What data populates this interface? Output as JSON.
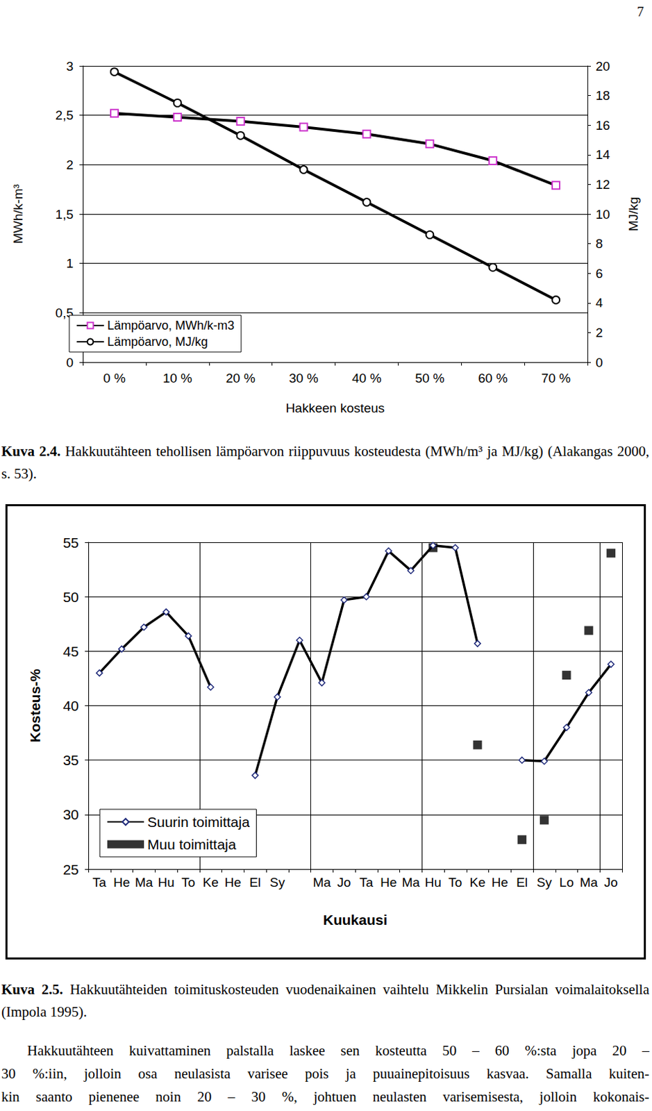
{
  "page_number": "7",
  "chart_data": [
    {
      "type": "line",
      "x_label": "Hakkeen kosteus",
      "y_label": "MWh/k-m³",
      "y2_label": "MJ/kg",
      "categories": [
        "0 %",
        "10 %",
        "20 %",
        "30 %",
        "40 %",
        "50 %",
        "60 %",
        "70 %"
      ],
      "series": [
        {
          "name": "Lämpöarvo, MWh/k-m3",
          "color": "#cc33cc",
          "marker": "square",
          "line_style": "solid",
          "values": [
            2.52,
            2.48,
            2.44,
            2.38,
            2.31,
            2.21,
            2.04,
            1.79
          ]
        },
        {
          "name": "Lämpöarvo, MJ/kg",
          "color": "#000000",
          "marker": "circle",
          "line_style": "solid",
          "axis": "y2",
          "values": [
            19.6,
            17.5,
            15.3,
            13.0,
            10.8,
            8.6,
            6.4,
            4.2
          ]
        }
      ],
      "ylim": [
        0,
        3
      ],
      "yticks": [
        0,
        {
          "value": 0.5,
          "label": "0,5"
        },
        1,
        {
          "value": 1.5,
          "label": "1,5"
        },
        2,
        {
          "value": 2.5,
          "label": "2,5"
        },
        3
      ],
      "y2lim": [
        0,
        20
      ],
      "y2ticks": [
        0,
        2,
        4,
        6,
        8,
        10,
        12,
        14,
        16,
        18,
        20
      ],
      "grid": true,
      "legend": "lower left"
    },
    {
      "type": "line",
      "x_label": "Kuukausi",
      "y_label": "Kosteus-%",
      "categories": [
        "Ta",
        "He",
        "Ma",
        "Hu",
        "To",
        "Ke",
        "He",
        "El",
        "Sy",
        null,
        "Ma",
        "Jo",
        "Ta",
        "He",
        "Ma",
        "Hu",
        "To",
        "Ke",
        "He",
        "El",
        "Sy",
        "Lo",
        "Ma",
        "Jo"
      ],
      "series": [
        {
          "name": "Suurin toimittaja",
          "type": "line",
          "color": "#1f2a7a",
          "marker": "diamond",
          "line_style": "solid",
          "values": [
            43,
            45.2,
            47.2,
            48.6,
            46.4,
            41.7,
            null,
            33.6,
            40.8,
            46,
            42.1,
            49.7,
            50,
            54.2,
            52.4,
            54.7,
            54.5,
            45.7,
            null,
            35,
            34.9,
            38,
            41.2,
            43.8
          ]
        },
        {
          "name": "Muu toimittaja",
          "type": "scatter",
          "color": "#000000",
          "marker": "square",
          "values": [
            null,
            null,
            null,
            null,
            null,
            null,
            null,
            null,
            null,
            null,
            null,
            null,
            null,
            null,
            null,
            54.5,
            null,
            36.4,
            null,
            27.7,
            29.5,
            42.8,
            46.9,
            54.0
          ]
        }
      ],
      "ylim": [
        25,
        55
      ],
      "yticks": [
        25,
        30,
        35,
        40,
        45,
        50,
        55
      ],
      "grid": true,
      "legend": "lower left"
    }
  ],
  "captions": [
    {
      "label": "Kuva 2.4.",
      "text": "Hakkuutähteen tehollisen lämpöarvon riippuvuus kosteudesta (MWh/m³ ja MJ/kg) (Alakangas 2000, s. 53)."
    },
    {
      "label": "Kuva 2.5.",
      "text": "Hakkuutähteiden toimituskosteuden vuodenaikainen vaihtelu Mikkelin Pursialan voimalaitoksella (Impola 1995)."
    }
  ],
  "body": {
    "lines": [
      "Hakkuutähteen kuivattaminen palstalla laskee sen kosteutta 50 – 60 %:sta jopa 20 –",
      "30 %:iin, jolloin osa neulasista varisee pois ja puuainepitoisuus kasvaa. Samalla kuiten-",
      "kin saanto pienenee noin 20 – 30 %, johtuen neulasten varisemisesta, jolloin kokonais-"
    ]
  }
}
